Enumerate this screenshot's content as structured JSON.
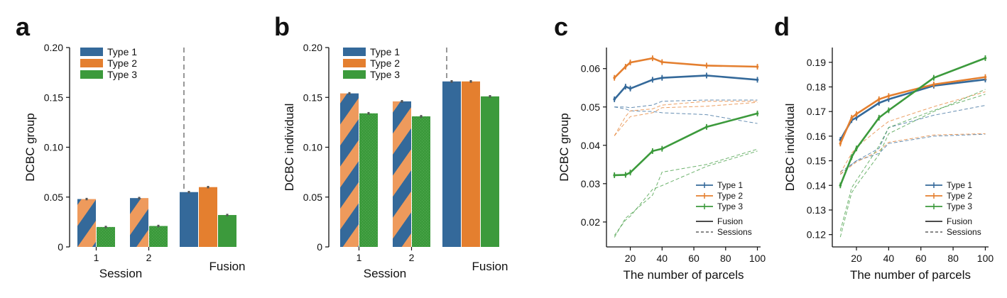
{
  "colors": {
    "type1": "#34699a",
    "type2": "#e47f2f",
    "type3": "#3c9a3c",
    "type1_stripe": "#5581ab",
    "type2_stripe": "#ee9a5c",
    "type3_stripe": "#53ac53",
    "error": "#555555"
  },
  "chart_data": [
    {
      "panel": "a",
      "type": "bar",
      "ylabel": "DCBC group",
      "ylim": [
        0,
        0.2
      ],
      "yticks": [
        0,
        0.05,
        0.1,
        0.15,
        0.2
      ],
      "ytick_labels": [
        "0",
        "0.05",
        "0.10",
        "0.15",
        "0.20"
      ],
      "groups": [
        {
          "label": "1",
          "values": [
            0.048,
            0.02
          ],
          "errors": [
            0.0012,
            0.0012
          ]
        },
        {
          "label": "2",
          "values": [
            0.049,
            0.021
          ],
          "errors": [
            0.0012,
            0.0012
          ]
        },
        {
          "label": "",
          "values": [
            0.055,
            0.06,
            0.032
          ],
          "errors": [
            0.0012,
            0.0012,
            0.0012
          ]
        }
      ],
      "group_labels": [
        {
          "label": "Session",
          "text": "Session"
        },
        {
          "label": "Fusion",
          "text": "Fusion"
        }
      ],
      "legend": [
        "Type 1",
        "Type 2",
        "Type 3"
      ]
    },
    {
      "panel": "b",
      "type": "bar",
      "ylabel": "DCBC individual",
      "ylim": [
        0,
        0.2
      ],
      "yticks": [
        0,
        0.05,
        0.1,
        0.15,
        0.2
      ],
      "ytick_labels": [
        "0",
        "0.05",
        "0.10",
        "0.15",
        "0.20"
      ],
      "groups": [
        {
          "label": "1",
          "values": [
            0.154,
            0.134
          ],
          "errors": [
            0.0013,
            0.0013
          ]
        },
        {
          "label": "2",
          "values": [
            0.146,
            0.131
          ],
          "errors": [
            0.0013,
            0.0013
          ]
        },
        {
          "label": "",
          "values": [
            0.166,
            0.166,
            0.151
          ],
          "errors": [
            0.0013,
            0.0013,
            0.0013
          ]
        }
      ],
      "group_labels": [
        {
          "label": "Session",
          "text": "Session"
        },
        {
          "label": "Fusion",
          "text": "Fusion"
        }
      ],
      "legend": [
        "Type 1",
        "Type 2",
        "Type 3"
      ]
    },
    {
      "panel": "c",
      "type": "line",
      "xlabel": "The number of parcels",
      "ylabel": "DCBC group",
      "xlim": [
        5,
        102
      ],
      "ylim": [
        0.0135,
        0.0655
      ],
      "xticks": [
        20,
        40,
        60,
        80,
        100
      ],
      "yticks": [
        0.02,
        0.03,
        0.04,
        0.05,
        0.06
      ],
      "ytick_labels": [
        "0.02",
        "0.03",
        "0.04",
        "0.05",
        "0.06"
      ],
      "x": [
        10,
        17,
        20,
        34,
        40,
        68,
        100
      ],
      "series": [
        {
          "name": "Type 1",
          "style": "solid",
          "values": [
            0.052,
            0.0553,
            0.0548,
            0.0571,
            0.0576,
            0.0582,
            0.0571
          ]
        },
        {
          "name": "Type 2",
          "style": "solid",
          "values": [
            0.0576,
            0.0605,
            0.0616,
            0.0627,
            0.0617,
            0.0608,
            0.0605
          ]
        },
        {
          "name": "Type 3",
          "style": "solid",
          "values": [
            0.0322,
            0.0323,
            0.0329,
            0.0385,
            0.0391,
            0.0448,
            0.0483
          ]
        },
        {
          "style": "dashed",
          "color_key": "type1",
          "values": [
            0.05,
            0.0495,
            0.049,
            0.0488,
            0.0485,
            0.048,
            0.0457
          ]
        },
        {
          "style": "dashed",
          "color_key": "type1",
          "values": [
            0.05,
            0.05,
            0.0498,
            0.0505,
            0.0515,
            0.0518,
            0.0518
          ]
        },
        {
          "style": "dashed",
          "color_key": "type2",
          "values": [
            0.0425,
            0.0475,
            0.049,
            0.0495,
            0.0505,
            0.0515,
            0.0515
          ]
        },
        {
          "style": "dashed",
          "color_key": "type2",
          "values": [
            0.0425,
            0.046,
            0.0475,
            0.0485,
            0.0498,
            0.0502,
            0.0512
          ]
        },
        {
          "style": "dashed",
          "color_key": "type3",
          "values": [
            0.016,
            0.021,
            0.022,
            0.027,
            0.033,
            0.035,
            0.039
          ]
        },
        {
          "style": "dashed",
          "color_key": "type3",
          "values": [
            0.0165,
            0.0205,
            0.0215,
            0.0285,
            0.0295,
            0.0345,
            0.0385
          ]
        }
      ],
      "legend": [
        "Type 1",
        "Type 2",
        "Type 3"
      ],
      "legend_style": [
        "Fusion",
        "Sessions"
      ]
    },
    {
      "panel": "d",
      "type": "line",
      "xlabel": "The number of parcels",
      "ylabel": "DCBC individual",
      "xlim": [
        5,
        102
      ],
      "ylim": [
        0.115,
        0.196
      ],
      "xticks": [
        20,
        40,
        60,
        80,
        100
      ],
      "yticks": [
        0.12,
        0.13,
        0.14,
        0.15,
        0.16,
        0.17,
        0.18,
        0.19
      ],
      "ytick_labels": [
        "0.12",
        "0.13",
        "0.14",
        "0.15",
        "0.16",
        "0.17",
        "0.18",
        "0.19"
      ],
      "x": [
        10,
        17,
        20,
        34,
        40,
        68,
        100
      ],
      "series": [
        {
          "name": "Type 1",
          "style": "solid",
          "values": [
            0.1585,
            0.1665,
            0.1675,
            0.1735,
            0.175,
            0.1805,
            0.183
          ]
        },
        {
          "name": "Type 2",
          "style": "solid",
          "values": [
            0.157,
            0.1675,
            0.169,
            0.175,
            0.1763,
            0.181,
            0.184
          ]
        },
        {
          "name": "Type 3",
          "style": "solid",
          "values": [
            0.14,
            0.1515,
            0.155,
            0.1675,
            0.1705,
            0.1837,
            0.1917
          ]
        },
        {
          "style": "dashed",
          "color_key": "type1",
          "values": [
            0.1445,
            0.1485,
            0.15,
            0.155,
            0.1635,
            0.1685,
            0.1725
          ]
        },
        {
          "style": "dashed",
          "color_key": "type1",
          "values": [
            0.1455,
            0.1485,
            0.15,
            0.153,
            0.157,
            0.16,
            0.1608
          ]
        },
        {
          "style": "dashed",
          "color_key": "type2",
          "values": [
            0.1445,
            0.148,
            0.1495,
            0.154,
            0.1575,
            0.1605,
            0.161
          ]
        },
        {
          "style": "dashed",
          "color_key": "type2",
          "values": [
            0.145,
            0.153,
            0.1555,
            0.163,
            0.166,
            0.172,
            0.178
          ]
        },
        {
          "style": "dashed",
          "color_key": "type3",
          "values": [
            0.119,
            0.137,
            0.14,
            0.1525,
            0.161,
            0.17,
            0.179
          ]
        },
        {
          "style": "dashed",
          "color_key": "type3",
          "values": [
            0.1215,
            0.139,
            0.142,
            0.156,
            0.1635,
            0.1705,
            0.177
          ]
        }
      ],
      "legend": [
        "Type 1",
        "Type 2",
        "Type 3"
      ],
      "legend_style": [
        "Fusion",
        "Sessions"
      ]
    }
  ]
}
